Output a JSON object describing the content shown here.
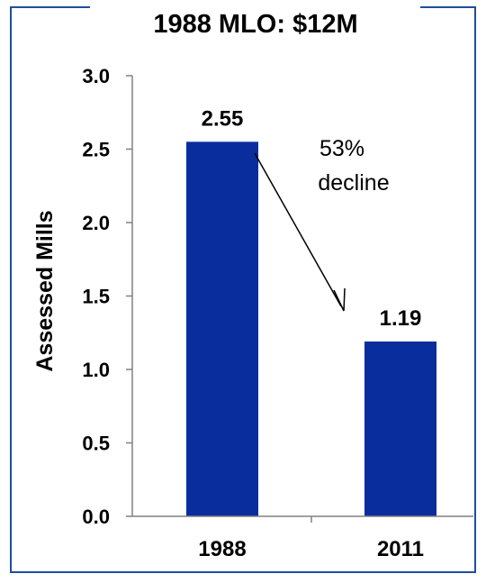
{
  "chart_data": {
    "type": "bar",
    "title": "1988 MLO: $12M",
    "ylabel": "Assessed Mills",
    "xlabel": "",
    "categories": [
      "1988",
      "2011"
    ],
    "values": [
      2.55,
      1.19
    ],
    "data_labels": [
      "2.55",
      "1.19"
    ],
    "ylim": [
      0,
      3.0
    ],
    "yticks": [
      "0.0",
      "0.5",
      "1.0",
      "1.5",
      "2.0",
      "2.5",
      "3.0"
    ],
    "grid": false,
    "legend": "none",
    "annotation": {
      "lines": [
        "53%",
        "decline"
      ],
      "arrow_from": "1988",
      "arrow_to": "2011"
    },
    "colors": {
      "bar": "#0A2D9E",
      "frame": "#1F4E9C",
      "axis": "#808080",
      "text": "#000000"
    }
  }
}
